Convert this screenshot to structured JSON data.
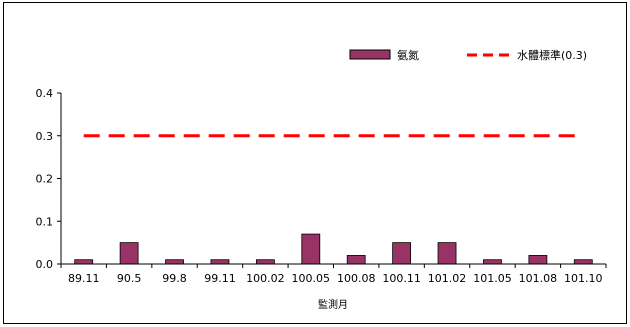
{
  "chart_data": {
    "type": "bar",
    "title": "",
    "xlabel": "監測月",
    "ylabel": "",
    "ylim": [
      0,
      0.4
    ],
    "yticks": [
      "0.0",
      "0.1",
      "0.2",
      "0.3",
      "0.4"
    ],
    "grid": false,
    "legend_position": "top-right",
    "categories": [
      "89.11",
      "90.5",
      "99.8",
      "99.11",
      "100.02",
      "100.05",
      "100.08",
      "100.11",
      "101.02",
      "101.05",
      "101.08",
      "101.10"
    ],
    "series": [
      {
        "name": "氨氮",
        "type": "bar",
        "color": "#993366",
        "values": [
          0.01,
          0.05,
          0.01,
          0.01,
          0.01,
          0.07,
          0.02,
          0.05,
          0.05,
          0.01,
          0.02,
          0.01
        ]
      },
      {
        "name": "水體標準(0.3)",
        "type": "line",
        "style": "dashed",
        "color": "#ff0000",
        "values": [
          0.3,
          0.3,
          0.3,
          0.3,
          0.3,
          0.3,
          0.3,
          0.3,
          0.3,
          0.3,
          0.3,
          0.3
        ]
      }
    ]
  }
}
